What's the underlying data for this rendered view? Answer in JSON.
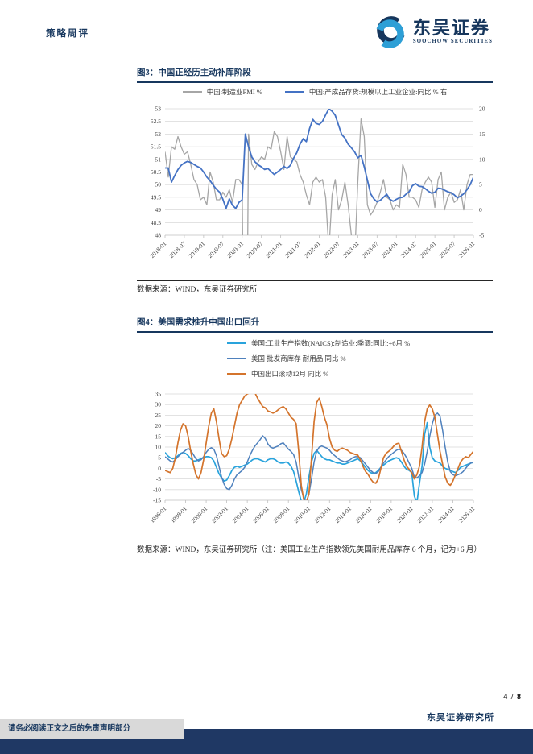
{
  "header": {
    "report_type": "策略周评",
    "brand_cn": "东吴证券",
    "brand_en": "SOOCHOW SECURITIES",
    "brand_navy": "#16365c",
    "brand_blue": "#2d9fd6"
  },
  "footer": {
    "page_number": "4 / 8",
    "institute": "东吴证券研究所",
    "disclaimer": "请务必阅读正文之后的免责声明部分",
    "band_color": "#1f3864"
  },
  "figures": [
    {
      "title": "图3：中国正经历主动补库阶段",
      "source": "数据来源：WIND，东吴证券研究所",
      "legend": [
        {
          "label": "中国:制造业PMI %",
          "color": "#a6a6a6"
        },
        {
          "label": "中国:产成品存货:规模以上工业企业:同比 % 右",
          "color": "#4472c4"
        }
      ],
      "chart_data": {
        "type": "line",
        "freq": "monthly",
        "x_start": "2018-01",
        "x_labels": [
          "2018-01",
          "2018-07",
          "2019-01",
          "2019-07",
          "2020-01",
          "2020-07",
          "2021-01",
          "2021-07",
          "2022-01",
          "2022-07",
          "2023-01",
          "2023-07",
          "2024-01",
          "2024-07",
          "2025-01",
          "2025-07",
          "2026-01"
        ],
        "left_axis": {
          "min": 48,
          "max": 53,
          "step": 0.5
        },
        "right_axis": {
          "min": -5,
          "max": 20,
          "step": 5
        },
        "grid": true,
        "series": [
          {
            "name": "中国:制造业PMI %",
            "axis": "left",
            "color": "#a6a6a6",
            "width": 1.3,
            "values": [
              51.3,
              50.3,
              51.5,
              51.4,
              51.9,
              51.5,
              51.2,
              51.3,
              50.8,
              50.2,
              50.0,
              49.4,
              49.5,
              49.2,
              50.5,
              50.1,
              49.4,
              49.4,
              49.7,
              49.5,
              49.8,
              49.3,
              50.2,
              50.2,
              50.0,
              35.7,
              52.0,
              50.8,
              50.6,
              50.9,
              51.1,
              51.0,
              51.5,
              51.4,
              52.1,
              51.9,
              51.3,
              50.6,
              51.9,
              51.1,
              51.0,
              50.9,
              50.4,
              50.1,
              49.6,
              49.2,
              50.1,
              50.3,
              50.1,
              50.2,
              49.5,
              47.4,
              49.6,
              50.2,
              49.0,
              49.4,
              50.1,
              49.2,
              48.0,
              47.0,
              50.1,
              52.6,
              51.9,
              49.2,
              48.8,
              49.0,
              49.3,
              49.7,
              50.2,
              49.5,
              49.4,
              49.0,
              49.2,
              49.1,
              50.8,
              50.4,
              49.5,
              49.5,
              49.4,
              49.1,
              49.8,
              50.1,
              50.3,
              50.1,
              49.1,
              50.2,
              50.5,
              49.0,
              49.5,
              49.7,
              49.3,
              49.4,
              49.8,
              49.0,
              50.0,
              50.4,
              50.4
            ]
          },
          {
            "name": "中国:产成品存货:规模以上工业企业:同比 % 右",
            "axis": "right",
            "color": "#4472c4",
            "width": 1.8,
            "values": [
              8.3,
              8.3,
              5.5,
              6.8,
              8.0,
              8.8,
              9.3,
              9.6,
              9.4,
              9.0,
              8.6,
              8.3,
              7.5,
              6.5,
              5.8,
              4.9,
              4.1,
              3.5,
              2.1,
              0.3,
              2.2,
              0.9,
              0.3,
              1.5,
              2.0,
              15.0,
              12.5,
              10.5,
              9.5,
              8.9,
              8.5,
              8.0,
              8.2,
              7.6,
              7.0,
              7.5,
              8.0,
              8.6,
              8.2,
              8.8,
              10.2,
              11.3,
              13.0,
              14.1,
              13.5,
              16.1,
              17.9,
              17.1,
              16.9,
              17.5,
              18.8,
              20.0,
              19.5,
              18.7,
              16.8,
              14.9,
              14.2,
              13.0,
              12.3,
              11.5,
              10.3,
              10.8,
              8.5,
              5.9,
              3.2,
              2.2,
              1.6,
              1.9,
              2.5,
              3.1,
              2.1,
              1.7,
              2.1,
              2.4,
              2.5,
              3.1,
              3.6,
              4.8,
              5.2,
              4.7,
              4.6,
              4.2,
              3.7,
              3.3,
              3.5,
              4.3,
              4.2,
              3.9,
              3.6,
              3.4,
              3.0,
              2.4,
              2.7,
              3.2,
              4.0,
              5.0,
              6.5
            ]
          }
        ]
      }
    },
    {
      "title": "图4：美国需求推升中国出口回升",
      "source": "数据来源：WIND，东吴证券研究所（注：美国工业生产指数领先美国耐用品库存 6 个月，记为+6 月）",
      "legend": [
        {
          "label": "美国:工业生产指数(NAICS):制造业:季调:同比:+6月 %",
          "color": "#29a3dc"
        },
        {
          "label": "美国 批发商库存 耐用品 同比 %",
          "color": "#4f81bd"
        },
        {
          "label": "中国出口滚动12月 同比 %",
          "color": "#d4742c"
        }
      ],
      "chart_data": {
        "type": "line",
        "freq": "quarterly",
        "x_start": "1996-01",
        "x_labels": [
          "1996-01",
          "1998-01",
          "2000-01",
          "2002-01",
          "2004-01",
          "2006-01",
          "2008-01",
          "2010-01",
          "2012-01",
          "2014-01",
          "2016-01",
          "2018-01",
          "2020-01",
          "2022-01",
          "2024-01",
          "2026-01"
        ],
        "left_axis": {
          "min": -15,
          "max": 35,
          "step": 5
        },
        "grid": true,
        "series": [
          {
            "name": "美国:工业生产指数(NAICS):制造业:季调:同比:+6月 %",
            "axis": "left",
            "color": "#29a3dc",
            "width": 1.7,
            "values": [
              7.5,
              6,
              5,
              4.5,
              5,
              6,
              7,
              7.5,
              7,
              6,
              4.5,
              3.5,
              3.5,
              4,
              4.5,
              5,
              5.5,
              5.5,
              5,
              3.5,
              0.5,
              -2.5,
              -4.5,
              -6,
              -5.5,
              -3.5,
              -1,
              0.5,
              1,
              0.5,
              1,
              1.5,
              2,
              3,
              4,
              4.5,
              4.5,
              4,
              3.5,
              3,
              4,
              4.5,
              4.5,
              4,
              3,
              2.5,
              2.5,
              3,
              2.5,
              1,
              -1.5,
              -6,
              -11,
              -15.5,
              -15.8,
              -12,
              -4,
              3,
              7,
              8.5,
              7,
              5.5,
              4.5,
              4,
              4,
              3.5,
              3,
              2.5,
              2.5,
              2,
              2,
              2.5,
              3,
              3.5,
              4,
              4.5,
              3.5,
              2,
              0.5,
              -1,
              -2,
              -2.5,
              -2,
              -1,
              0.5,
              1.5,
              2.5,
              3.5,
              4,
              4.5,
              5,
              4.5,
              3,
              1,
              -0.5,
              -1,
              -2,
              -13,
              -16.2,
              -7,
              1,
              16,
              21.5,
              10,
              5,
              3.5,
              3,
              2.5,
              1,
              0,
              -0.5,
              -1,
              -1.5,
              -2,
              -1,
              0.5,
              1,
              1.5,
              2,
              2.5,
              2.8
            ]
          },
          {
            "name": "美国 批发商库存 耐用品 同比 %",
            "axis": "left",
            "color": "#4f81bd",
            "width": 1.5,
            "values": [
              5.5,
              4.5,
              3.5,
              3,
              4,
              5.5,
              6.5,
              7.5,
              8.5,
              9.3,
              8.5,
              6.5,
              4.5,
              3.5,
              4,
              5.5,
              7.5,
              9,
              9.7,
              9,
              6,
              1,
              -4,
              -7.5,
              -9.5,
              -10,
              -8,
              -5,
              -3,
              -2,
              -1,
              0.5,
              3,
              6,
              8.5,
              10.5,
              12,
              13.5,
              15.3,
              14,
              11.5,
              10,
              9.5,
              10,
              10.5,
              11.5,
              12,
              10.5,
              9,
              8,
              6.5,
              3,
              -4,
              -10,
              -14,
              -15.8,
              -12,
              -5,
              3,
              8,
              10,
              10.5,
              10,
              9.5,
              8.5,
              7,
              6,
              5,
              4,
              3.5,
              3,
              3.5,
              4,
              5,
              5.5,
              5.5,
              5,
              3.5,
              2,
              0.5,
              -1,
              -2,
              -2.5,
              -1.5,
              0.5,
              2.5,
              4,
              5.5,
              6.5,
              7.5,
              8.5,
              9,
              8.5,
              7,
              5,
              2.5,
              0,
              -4,
              -4.5,
              -3.5,
              -2,
              2,
              8,
              15,
              21,
              25,
              26,
              24.5,
              18,
              10,
              3,
              -1.5,
              -3,
              -3.5,
              -3,
              -2.5,
              -1.5,
              0,
              1.5,
              2.5,
              3
            ]
          },
          {
            "name": "中国出口滚动12月 同比 %",
            "axis": "left",
            "color": "#d4742c",
            "width": 1.7,
            "values": [
              -1,
              -1.5,
              -2,
              0,
              5,
              12,
              18,
              21,
              20,
              15,
              8,
              2,
              -3,
              -5,
              -2,
              4,
              12,
              20,
              26,
              28,
              22,
              14,
              7,
              5.5,
              6,
              9,
              14,
              20,
              26,
              30,
              32,
              34,
              35,
              35.5,
              35.5,
              35.5,
              33,
              31,
              29,
              28.5,
              27,
              26.5,
              26,
              26.5,
              27.5,
              28.5,
              29,
              28,
              26,
              24,
              23,
              21,
              8,
              -8,
              -15,
              -16,
              -12,
              5,
              22,
              31,
              33,
              29,
              24,
              20.5,
              14,
              10,
              8.5,
              8,
              9,
              9.5,
              9,
              8.5,
              7.5,
              7,
              6.5,
              6.2,
              4,
              1,
              -1.5,
              -2.8,
              -5,
              -6.5,
              -7,
              -5,
              0,
              5,
              7,
              8,
              9,
              10.5,
              11.5,
              11.8,
              8,
              4,
              1,
              -0.5,
              -2,
              -5,
              -3,
              1,
              10,
              22,
              28,
              29.8,
              28,
              24,
              16,
              8,
              2,
              -4,
              -7,
              -8,
              -6,
              -3,
              0,
              3,
              4.5,
              5.5,
              5,
              6.5,
              8
            ]
          }
        ]
      }
    }
  ]
}
